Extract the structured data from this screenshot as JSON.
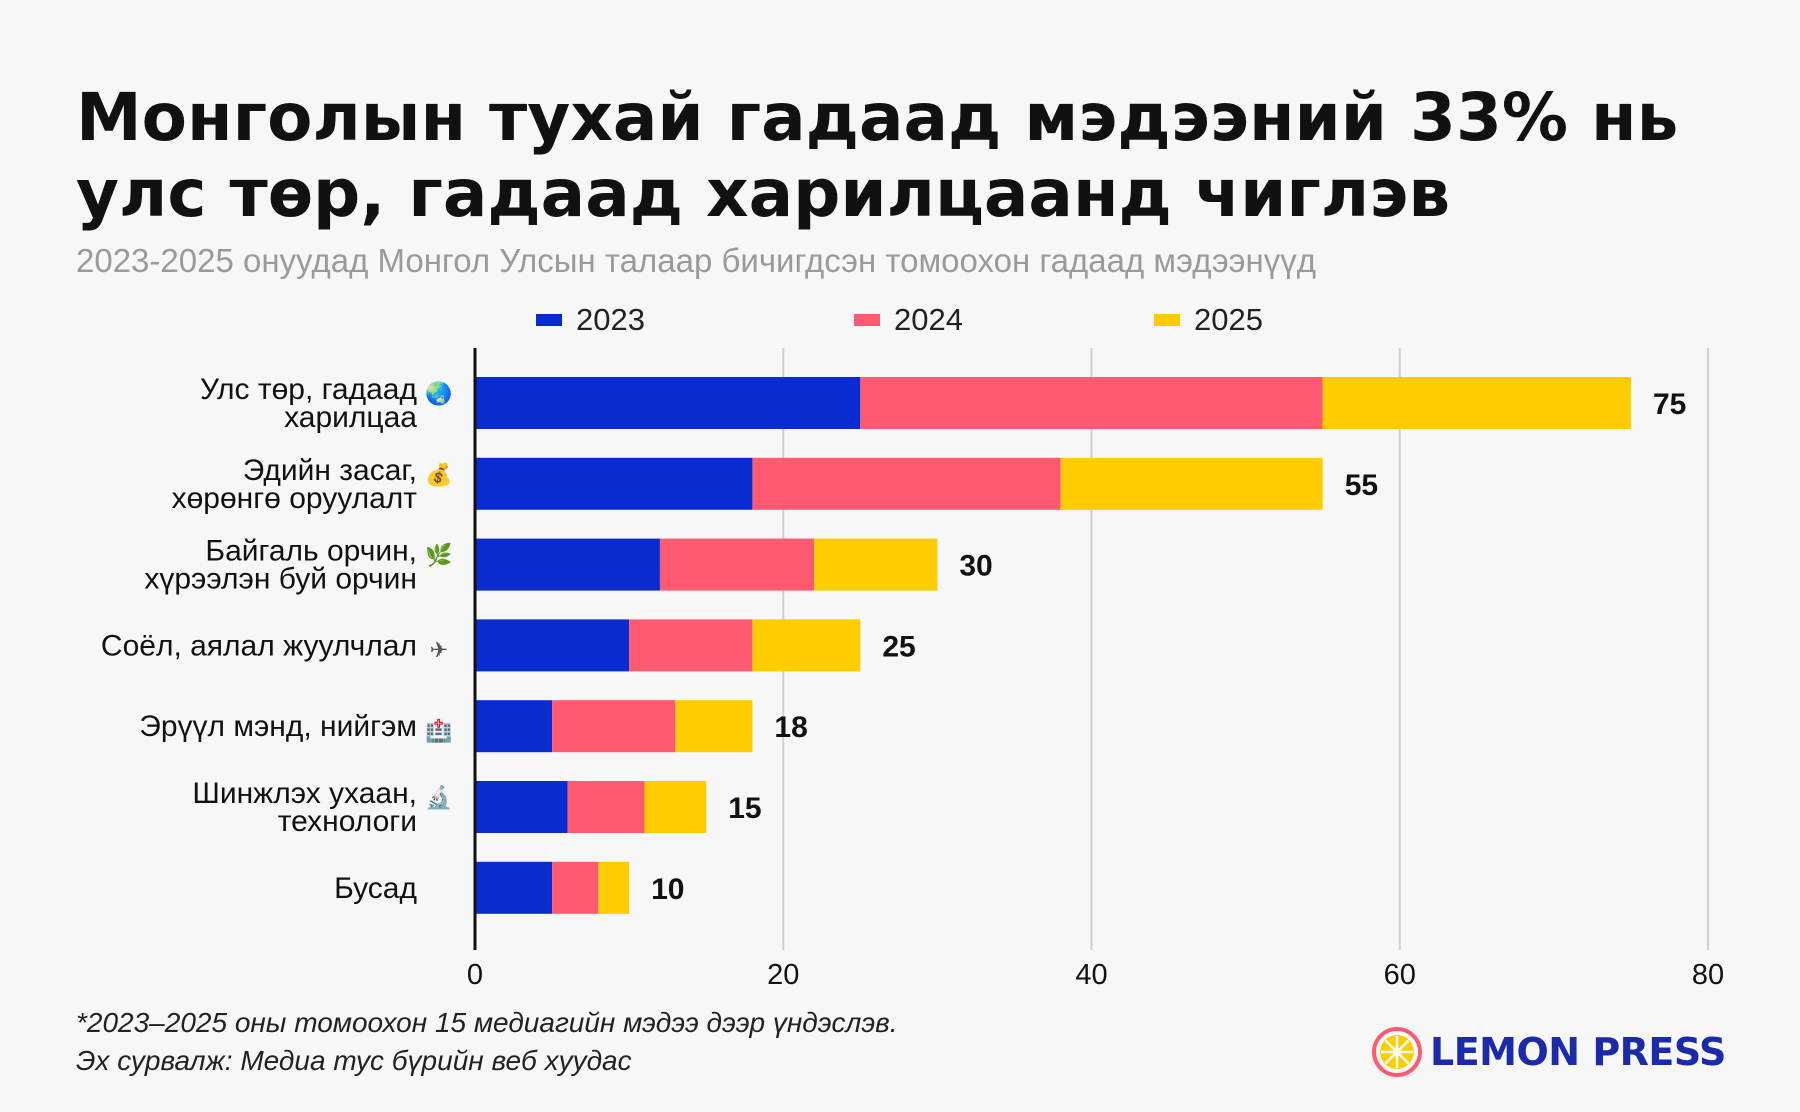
{
  "header": {
    "title_line1": "Монголын тухай гадаад мэдээний 33% нь",
    "title_line2": "улс төр, гадаад харилцаанд чиглэв",
    "subtitle": "2023-2025 онуудад Монгол Улсын талаар бичигдсэн томоохон гадаад мэдээнүүд"
  },
  "legend": [
    {
      "label": "2023",
      "color": "#0a2bd0"
    },
    {
      "label": "2024",
      "color": "#ff5a72"
    },
    {
      "label": "2025",
      "color": "#ffcc00"
    }
  ],
  "chart_data": {
    "type": "bar",
    "orientation": "horizontal",
    "stacked": true,
    "categories": [
      {
        "lines": [
          "Улс төр, гадаад",
          "харилцаа"
        ],
        "icon": "globe-icon",
        "glyph": "🌏"
      },
      {
        "lines": [
          "Эдийн засаг,",
          "хөрөнгө оруулалт"
        ],
        "icon": "money-bag-icon",
        "glyph": "💰"
      },
      {
        "lines": [
          "Байгаль орчин,",
          "хүрээлэн буй орчин"
        ],
        "icon": "herb-icon",
        "glyph": "🌿"
      },
      {
        "lines": [
          "Соёл, аялал жуулчлал"
        ],
        "icon": "airplane-icon",
        "glyph": "✈"
      },
      {
        "lines": [
          "Эрүүл мэнд, нийгэм"
        ],
        "icon": "hospital-icon",
        "glyph": "🏥"
      },
      {
        "lines": [
          "Шинжлэх ухаан,",
          "технологи"
        ],
        "icon": "microscope-icon",
        "glyph": "🔬"
      },
      {
        "lines": [
          "Бусад"
        ],
        "icon": "",
        "glyph": ""
      }
    ],
    "series": [
      {
        "name": "2023",
        "color": "#0a2bd0",
        "values": [
          25,
          18,
          12,
          10,
          5,
          6,
          5
        ]
      },
      {
        "name": "2024",
        "color": "#ff5a72",
        "values": [
          30,
          20,
          10,
          8,
          8,
          5,
          3
        ]
      },
      {
        "name": "2025",
        "color": "#ffcc00",
        "values": [
          20,
          17,
          8,
          7,
          5,
          4,
          2
        ]
      }
    ],
    "totals": [
      75,
      55,
      30,
      25,
      18,
      15,
      10
    ],
    "xlim": [
      0,
      80
    ],
    "xticks": [
      0,
      20,
      40,
      60,
      80
    ],
    "grid": true
  },
  "footer": {
    "note": "*2023–2025 оны томоохон 15 медиагийн мэдээ дээр үндэслэв.",
    "source": "Эх сурвалж: Медиа тус бүрийн веб хуудас",
    "brand": "LEMON PRESS"
  }
}
